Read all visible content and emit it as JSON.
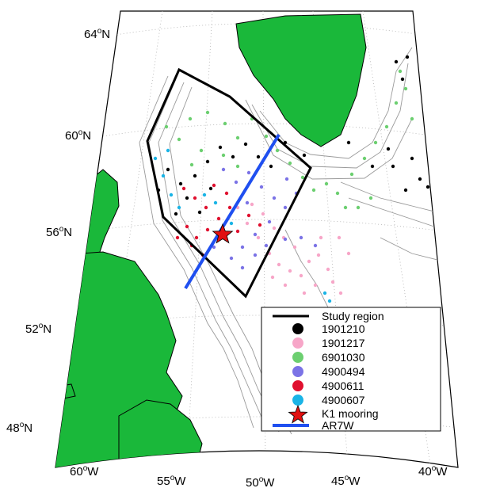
{
  "colors": {
    "land": "#1ab83a",
    "study_region": "#000000",
    "ar7w": "#1f4ff0",
    "contour": "#9a9a9a",
    "grid": "#b0b0b0",
    "mooring": "#e11010"
  },
  "lat_labels": [
    {
      "deg": "64",
      "hem": "N"
    },
    {
      "deg": "60",
      "hem": "N"
    },
    {
      "deg": "56",
      "hem": "N"
    },
    {
      "deg": "52",
      "hem": "N"
    },
    {
      "deg": "48",
      "hem": "N"
    }
  ],
  "lon_labels": [
    {
      "deg": "60",
      "hem": "W"
    },
    {
      "deg": "55",
      "hem": "W"
    },
    {
      "deg": "50",
      "hem": "W"
    },
    {
      "deg": "45",
      "hem": "W"
    },
    {
      "deg": "40",
      "hem": "W"
    }
  ],
  "legend": {
    "study_region": "Study region",
    "floats": [
      {
        "id": "1901210",
        "color": "#000000"
      },
      {
        "id": "1901217",
        "color": "#f7a6c8"
      },
      {
        "id": "6901030",
        "color": "#6ccf70"
      },
      {
        "id": "4900494",
        "color": "#7b73e6"
      },
      {
        "id": "4900611",
        "color": "#e0102f"
      },
      {
        "id": "4900607",
        "color": "#1ab4e6"
      }
    ],
    "mooring": "K1 mooring",
    "section": "AR7W"
  }
}
